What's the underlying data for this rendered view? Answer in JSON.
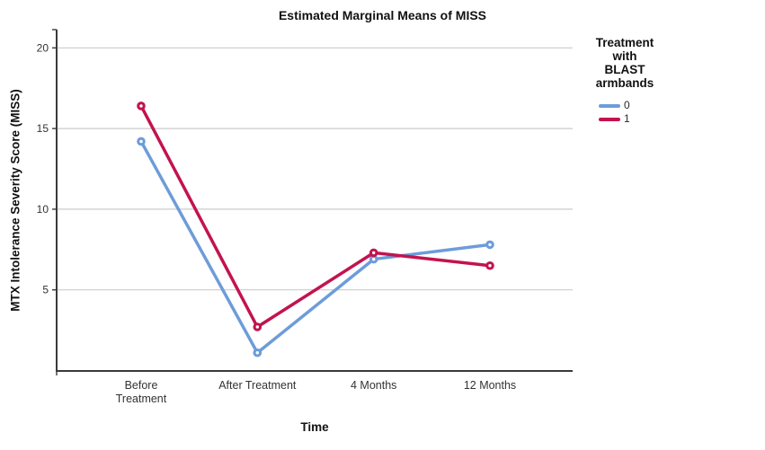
{
  "chart_data": {
    "type": "line",
    "title": "Estimated Marginal Means of MISS",
    "xlabel": "Time",
    "ylabel": "MTX Intolerance Severity Score (MISS)",
    "categories": [
      "Before Treatment",
      "After Treatment",
      "4 Months",
      "12 Months"
    ],
    "series": [
      {
        "name": "0",
        "color": "#6D9CD9",
        "values": [
          14.2,
          1.1,
          6.9,
          7.8
        ]
      },
      {
        "name": "1",
        "color": "#C3134F",
        "values": [
          16.4,
          2.7,
          7.3,
          6.5
        ]
      }
    ],
    "yticks": [
      5,
      10,
      15,
      20
    ],
    "ylim": [
      0,
      21.2
    ],
    "grid": "horizontal-major-gridlines",
    "marker": "circle-with-white-center",
    "legend": {
      "title": "Treatment with BLAST armbands",
      "position": "right",
      "entries": [
        "0",
        "1"
      ]
    },
    "colors": {
      "gridline": "#cbcbcb",
      "axis": "#3a3a3a",
      "tick_text": "#333333",
      "background": "#ffffff"
    }
  }
}
